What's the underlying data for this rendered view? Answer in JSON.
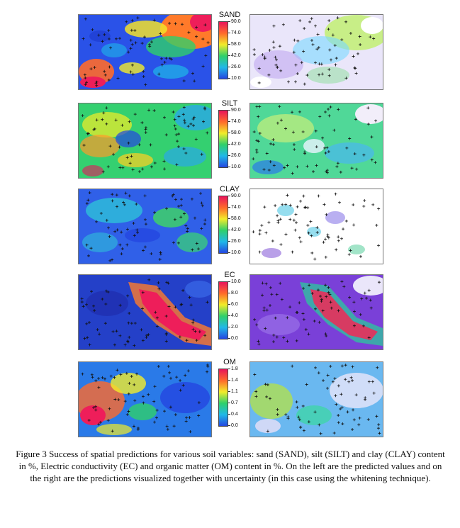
{
  "figure": {
    "caption": "Figure 3 Success of spatial predictions for various soil variables: sand (SAND), silt (SILT) and clay (CLAY) content in %, Electric conductivity (EC) and organic matter (OM) content in %. On the left are the predicted values and on the right are the predictions visualized together with uncertainty (in this case using the whitening technique).",
    "panels": [
      {
        "id": "sand",
        "title": "SAND",
        "ticks": [
          "90.0",
          "74.0",
          "58.0",
          "42.0",
          "26.0",
          "10.0"
        ],
        "colors": [
          "#e8145a",
          "#ff6a2a",
          "#f2ec2a",
          "#2fd06a",
          "#20b8e8",
          "#2446e0"
        ]
      },
      {
        "id": "silt",
        "title": "SILT",
        "ticks": [
          "90.0",
          "74.0",
          "58.0",
          "42.0",
          "26.0",
          "10.0"
        ],
        "colors": [
          "#e8145a",
          "#ff6a2a",
          "#f2ec2a",
          "#2fd06a",
          "#20b8e8",
          "#2446e0"
        ]
      },
      {
        "id": "clay",
        "title": "CLAY",
        "ticks": [
          "90.0",
          "74.0",
          "58.0",
          "42.0",
          "26.0",
          "10.0"
        ],
        "colors": [
          "#e8145a",
          "#ff6a2a",
          "#f2ec2a",
          "#2fd06a",
          "#20b8e8",
          "#2446e0"
        ]
      },
      {
        "id": "ec",
        "title": "EC",
        "ticks": [
          "10.0",
          "8.0",
          "6.0",
          "4.0",
          "2.0",
          "0.0"
        ],
        "colors": [
          "#e8145a",
          "#ff6a2a",
          "#f2ec2a",
          "#2fd06a",
          "#20b8e8",
          "#2446e0"
        ]
      },
      {
        "id": "om",
        "title": "OM",
        "ticks": [
          "1.8",
          "1.4",
          "1.1",
          "0.7",
          "0.4",
          "0.0"
        ],
        "colors": [
          "#e8145a",
          "#ff6a2a",
          "#f2ec2a",
          "#2fd06a",
          "#20b8e8",
          "#2446e0"
        ]
      }
    ]
  }
}
